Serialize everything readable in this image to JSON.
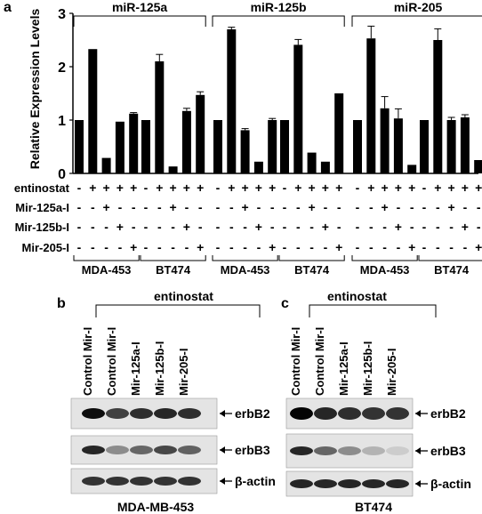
{
  "panel_a": {
    "label": "a",
    "chart_data": {
      "type": "bar",
      "ylabel": "Relative Expression Levels",
      "yticks": [
        0,
        1,
        2,
        3
      ],
      "ylim": [
        0,
        3
      ],
      "groups": [
        {
          "title": "miR-125a",
          "cells": [
            {
              "name": "MDA-453",
              "values": [
                1.0,
                2.33,
                0.29,
                0.97,
                1.12
              ],
              "errors": [
                0,
                0,
                0,
                0,
                0.02
              ]
            },
            {
              "name": "BT474",
              "values": [
                1.0,
                2.1,
                0.13,
                1.17,
                1.47
              ],
              "errors": [
                0,
                0.13,
                0,
                0.05,
                0.06
              ]
            }
          ]
        },
        {
          "title": "miR-125b",
          "cells": [
            {
              "name": "MDA-453",
              "values": [
                1.0,
                2.7,
                0.81,
                0.22,
                1.0
              ],
              "errors": [
                0,
                0.04,
                0.03,
                0,
                0.03
              ]
            },
            {
              "name": "BT474",
              "values": [
                1.0,
                2.41,
                0.39,
                0.22,
                1.5
              ],
              "errors": [
                0,
                0.1,
                0,
                0,
                0
              ]
            }
          ]
        },
        {
          "title": "miR-205",
          "cells": [
            {
              "name": "MDA-453",
              "values": [
                1.0,
                2.53,
                1.22,
                1.03,
                0.16
              ],
              "errors": [
                0,
                0.23,
                0.22,
                0.18,
                0
              ]
            },
            {
              "name": "BT474",
              "values": [
                1.0,
                2.5,
                1.0,
                1.05,
                0.25
              ],
              "errors": [
                0,
                0.21,
                0.05,
                0.05,
                0
              ]
            }
          ]
        }
      ]
    },
    "treatments": [
      {
        "label": "entinostat",
        "signs": [
          "-",
          "+",
          "+",
          "+",
          "+"
        ]
      },
      {
        "label": "Mir-125a-I",
        "signs": [
          "-",
          "-",
          "+",
          "-",
          "-"
        ]
      },
      {
        "label": "Mir-125b-I",
        "signs": [
          "-",
          "-",
          "-",
          "+",
          "-"
        ]
      },
      {
        "label": "Mir-205-I",
        "signs": [
          "-",
          "-",
          "-",
          "-",
          "+"
        ]
      }
    ]
  },
  "panel_b": {
    "label": "b",
    "treatment": "entinostat",
    "lanes": [
      "Control Mir-I",
      "Control Mir-I",
      "Mir-125a-I",
      "Mir-125b-I",
      "Mir-205-I"
    ],
    "blots": [
      {
        "name": "erbB2",
        "intensity": [
          0.95,
          0.75,
          0.82,
          0.85,
          0.82
        ]
      },
      {
        "name": "erbB3",
        "intensity": [
          0.85,
          0.45,
          0.6,
          0.72,
          0.62
        ]
      },
      {
        "name": "β-actin",
        "intensity": [
          0.8,
          0.8,
          0.8,
          0.8,
          0.8
        ]
      }
    ],
    "cell_line": "MDA-MB-453"
  },
  "panel_c": {
    "label": "c",
    "treatment": "entinostat",
    "lanes": [
      "Control Mir-I",
      "Control Mir-I",
      "Mir-125a-I",
      "Mir-125b-I",
      "Mir-205-I"
    ],
    "blots": [
      {
        "name": "erbB2",
        "intensity": [
          0.98,
          0.85,
          0.82,
          0.8,
          0.8
        ]
      },
      {
        "name": "erbB3",
        "intensity": [
          0.85,
          0.6,
          0.45,
          0.3,
          0.2
        ]
      },
      {
        "name": "β-actin",
        "intensity": [
          0.85,
          0.85,
          0.85,
          0.85,
          0.85
        ]
      }
    ],
    "cell_line": "BT474"
  }
}
